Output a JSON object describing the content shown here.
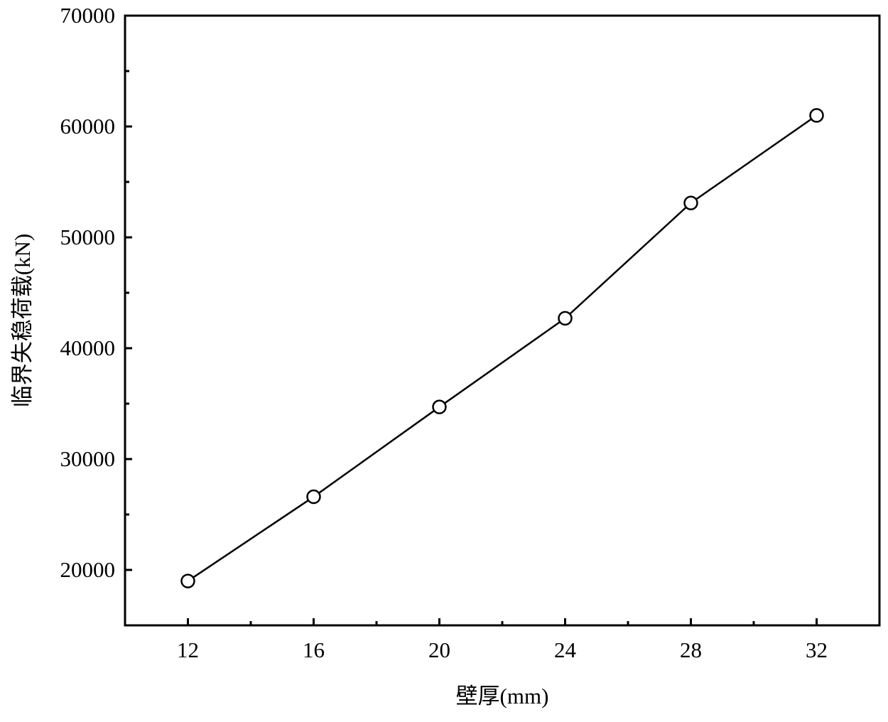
{
  "chart_data": {
    "type": "line",
    "x_label": "壁厚(mm)",
    "y_label": "临界失稳荷载(kN)",
    "x": [
      12,
      16,
      20,
      24,
      28,
      32
    ],
    "series": [
      {
        "color": "#000000",
        "values": [
          19000,
          26600,
          34700,
          42700,
          53100,
          61000
        ]
      }
    ],
    "xlim": [
      10,
      34
    ],
    "xticks": [
      12,
      16,
      20,
      24,
      28,
      32
    ],
    "ylim": [
      15000,
      70000
    ],
    "yticks": [
      20000,
      30000,
      40000,
      50000,
      60000,
      70000
    ],
    "grid": false
  }
}
